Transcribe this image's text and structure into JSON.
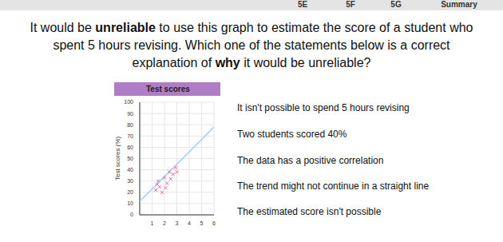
{
  "tabs": [
    "5E",
    "5F",
    "5G",
    "Summary"
  ],
  "question": [
    [
      {
        "text": "It would be ",
        "bold": false
      },
      {
        "text": "unreliable",
        "bold": true
      },
      {
        "text": " to use this graph to estimate the score of a student who",
        "bold": false
      }
    ],
    [
      {
        "text": "spent 5 hours revising. Which one of the statements below is a correct",
        "bold": false
      }
    ],
    [
      {
        "text": "explanation of ",
        "bold": false
      },
      {
        "text": "why",
        "bold": true
      },
      {
        "text": " it would be unreliable?",
        "bold": false
      }
    ]
  ],
  "chart_data": {
    "type": "scatter",
    "title": "Test scores",
    "y_label": "Test scores (%)",
    "x": [
      1.3,
      1.4,
      1.5,
      1.6,
      1.8,
      2.0,
      2.1,
      2.2,
      2.4,
      2.5,
      2.7,
      2.9,
      3.0
    ],
    "values": [
      22,
      27,
      30,
      25,
      20,
      33,
      24,
      28,
      38,
      32,
      36,
      42,
      38
    ],
    "color": "#e8649a",
    "marker": "x",
    "trend_line": {
      "x": [
        0,
        6
      ],
      "values": [
        12,
        78
      ],
      "color": "#8ec9e8"
    },
    "xlim": [
      0,
      6
    ],
    "xticks": [
      1,
      2,
      3,
      4,
      5,
      6
    ],
    "ylim": [
      0,
      100
    ],
    "yticks": [
      0,
      10,
      20,
      30,
      40,
      50,
      60,
      70,
      80,
      90,
      100
    ],
    "grid": true
  },
  "options": [
    "It isn't possible to spend 5 hours revising",
    "Two students scored 40%",
    "The data has a positive correlation",
    "The trend might not continue in a straight line",
    "The estimated score isn't possible"
  ]
}
